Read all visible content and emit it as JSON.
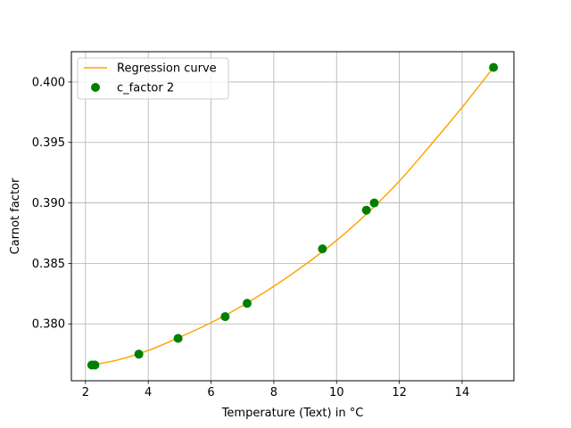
{
  "chart_data": {
    "type": "scatter",
    "title": "",
    "xlabel": "Temperature (Text) in °C",
    "ylabel": "Carnot factor",
    "xlim": [
      1.55,
      15.65
    ],
    "ylim": [
      0.3753,
      0.4025
    ],
    "xticks": [
      2,
      4,
      6,
      8,
      10,
      12,
      14
    ],
    "xtick_labels": [
      "2",
      "4",
      "6",
      "8",
      "10",
      "12",
      "14"
    ],
    "yticks": [
      0.38,
      0.385,
      0.39,
      0.395,
      0.4
    ],
    "ytick_labels": [
      "0.380",
      "0.385",
      "0.390",
      "0.395",
      "0.400"
    ],
    "grid": true,
    "legend_position": "top-left",
    "series": [
      {
        "name": "Regression curve",
        "kind": "line",
        "color": "#FFA500",
        "x": [
          2.2,
          3.0,
          4.0,
          5.0,
          6.0,
          7.0,
          8.0,
          9.0,
          10.0,
          11.0,
          12.0,
          13.0,
          14.0,
          15.0
        ],
        "y": [
          0.3766,
          0.377,
          0.3778,
          0.3789,
          0.3801,
          0.3815,
          0.3831,
          0.3849,
          0.3869,
          0.3892,
          0.3918,
          0.3948,
          0.3979,
          0.4012
        ]
      },
      {
        "name": "c_factor 2",
        "kind": "scatter",
        "color": "#008000",
        "x": [
          2.2,
          2.3,
          3.7,
          4.95,
          6.45,
          7.15,
          9.55,
          10.95,
          11.2,
          15.0
        ],
        "y": [
          0.3766,
          0.3766,
          0.3775,
          0.3788,
          0.3806,
          0.3817,
          0.3862,
          0.3894,
          0.39,
          0.4012
        ]
      }
    ]
  }
}
